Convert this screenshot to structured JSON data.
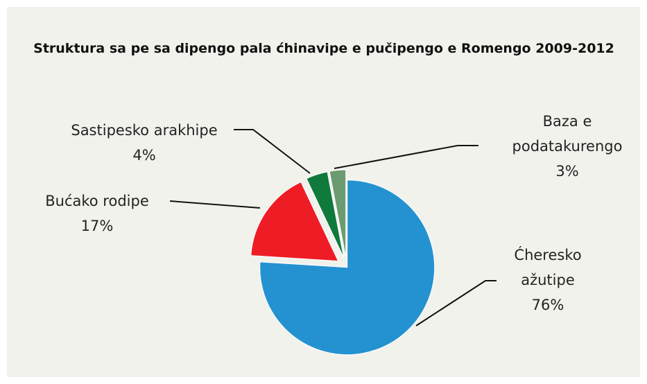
{
  "chart_data": {
    "type": "pie",
    "title": "Struktura sa pe sa dipengo pala ćhinavipe e pučipengo e Romengo 2009-2012",
    "categories": [
      "Ćheresko ažutipe",
      "Bućako rodipe",
      "Sastipesko arakhipe",
      "Baza e podatakurengo"
    ],
    "values": [
      76,
      17,
      4,
      3
    ],
    "value_labels": [
      "76%",
      "17%",
      "4%",
      "3%"
    ],
    "colors": [
      "#2492d1",
      "#ee1c25",
      "#0f7a3c",
      "#6b9b70"
    ]
  }
}
